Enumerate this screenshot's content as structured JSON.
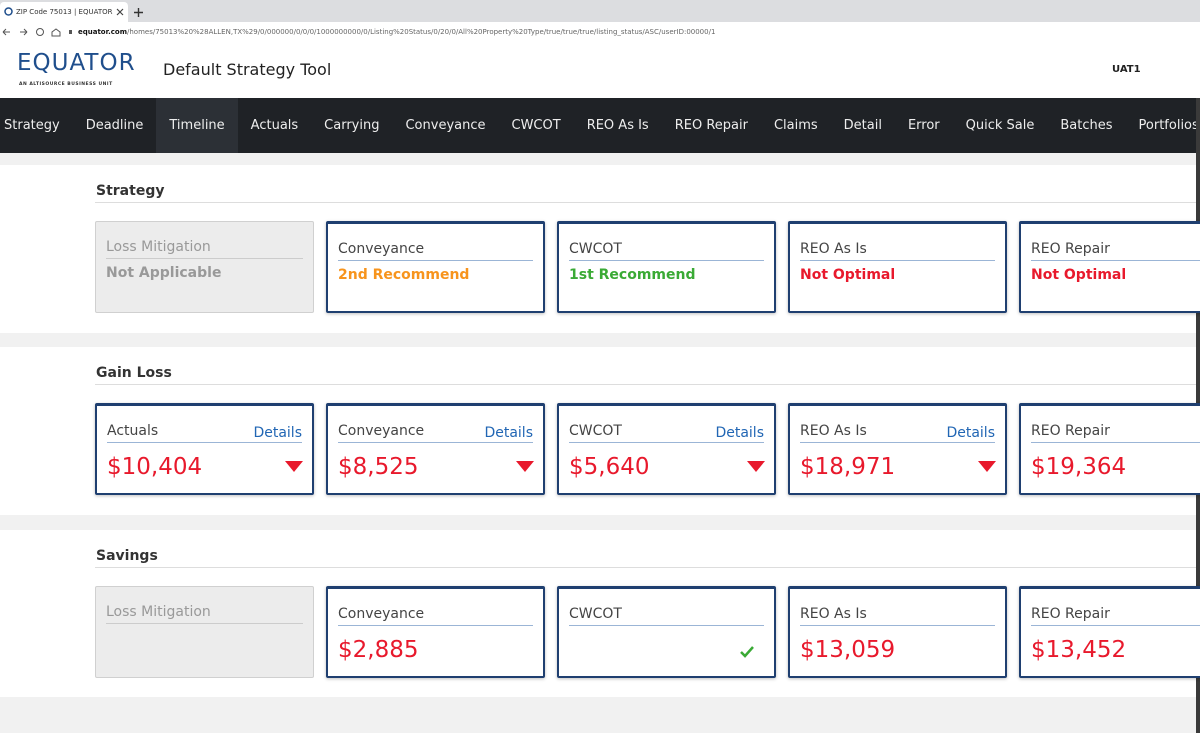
{
  "browser": {
    "tab_title": "ZIP Code 75013 | EQUATOR",
    "url_host": "equator.com",
    "url_path": "/homes/75013%20%28ALLEN,TX%29/0/000000/0/0/0/1000000000/0/Listing%20Status/0/20/0/All%20Property%20Type/true/true/true/listing_status/ASC/userID:00000/1"
  },
  "header": {
    "logo": "EQUATOR",
    "logo_tagline": "AN ALTISOURCE BUSINESS UNIT",
    "title": "Default Strategy Tool",
    "user": "UAT1"
  },
  "nav": {
    "items": [
      "Strategy",
      "Deadline",
      "Timeline",
      "Actuals",
      "Carrying",
      "Conveyance",
      "CWCOT",
      "REO As Is",
      "REO Repair",
      "Claims",
      "Detail",
      "Error",
      "Quick Sale",
      "Batches",
      "Portfolios"
    ],
    "active": 2
  },
  "sections": [
    {
      "title": "Strategy",
      "cards": [
        {
          "title": "Loss Mitigation",
          "status": "Not Applicable",
          "disabled": true
        },
        {
          "title": "Conveyance",
          "status": "2nd Recommend",
          "color": "#f7941d"
        },
        {
          "title": "CWCOT",
          "status": "1st Recommend",
          "color": "#3aaa35"
        },
        {
          "title": "REO As Is",
          "status": "Not Optimal",
          "color": "#e8192c"
        },
        {
          "title": "REO Repair",
          "status": "Not Optimal",
          "color": "#e8192c"
        }
      ]
    },
    {
      "title": "Gain Loss",
      "cards": [
        {
          "title": "Actuals",
          "link": "Details",
          "amount": "$10,404",
          "trend": "down"
        },
        {
          "title": "Conveyance",
          "link": "Details",
          "amount": "$8,525",
          "trend": "down"
        },
        {
          "title": "CWCOT",
          "link": "Details",
          "amount": "$5,640",
          "trend": "down"
        },
        {
          "title": "REO As Is",
          "link": "Details",
          "amount": "$18,971",
          "trend": "down"
        },
        {
          "title": "REO Repair",
          "amount": "$19,364"
        }
      ]
    },
    {
      "title": "Savings",
      "cards": [
        {
          "title": "Loss Mitigation",
          "disabled": true
        },
        {
          "title": "Conveyance",
          "amount": "$2,885"
        },
        {
          "title": "CWCOT",
          "check": true
        },
        {
          "title": "REO As Is",
          "amount": "$13,059"
        },
        {
          "title": "REO Repair",
          "amount": "$13,452"
        }
      ]
    }
  ]
}
